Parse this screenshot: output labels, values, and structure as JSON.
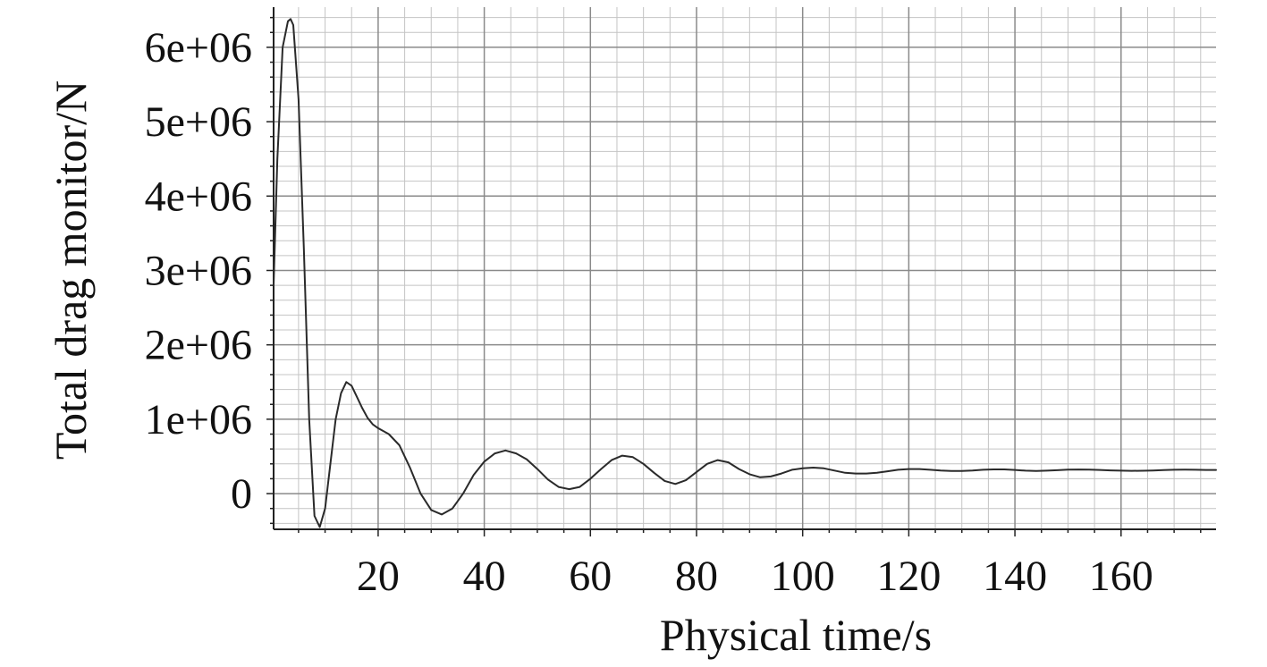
{
  "chart_data": {
    "type": "line",
    "title": "",
    "xlabel": "Physical time/s",
    "ylabel": "Total drag monitor/N",
    "xlim": [
      0.3,
      177.9
    ],
    "ylim": [
      -480000,
      6540000
    ],
    "grid": true,
    "x_ticks": [
      20,
      40,
      60,
      80,
      100,
      120,
      140,
      160
    ],
    "x_tick_labels": [
      "20",
      "40",
      "60",
      "80",
      "100",
      "120",
      "140",
      "160"
    ],
    "y_ticks": [
      0,
      1000000,
      2000000,
      3000000,
      4000000,
      5000000,
      6000000
    ],
    "y_tick_labels": [
      "0",
      "1e+06",
      "2e+06",
      "3e+06",
      "4e+06",
      "5e+06",
      "6e+06"
    ],
    "series": [
      {
        "color": "#2a2a2a",
        "x": [
          0.3,
          1,
          2,
          3,
          3.5,
          4,
          5,
          6,
          7,
          8,
          9,
          10,
          11,
          12,
          13,
          14,
          15,
          16,
          17,
          18,
          19,
          20,
          22,
          24,
          26,
          28,
          30,
          32,
          34,
          36,
          38,
          40,
          42,
          44,
          46,
          48,
          50,
          52,
          54,
          56,
          58,
          60,
          62,
          64,
          66,
          68,
          70,
          72,
          74,
          76,
          78,
          80,
          82,
          84,
          86,
          88,
          90,
          92,
          94,
          96,
          98,
          100,
          102,
          104,
          106,
          108,
          110,
          112,
          114,
          116,
          118,
          120,
          122,
          124,
          126,
          128,
          130,
          132,
          134,
          136,
          138,
          140,
          142,
          144,
          146,
          148,
          150,
          152,
          154,
          156,
          158,
          160,
          162,
          164,
          166,
          168,
          170,
          172,
          174,
          176,
          177.9
        ],
        "y": [
          2800000,
          4500000,
          6000000,
          6350000,
          6380000,
          6300000,
          5300000,
          3300000,
          1000000,
          -300000,
          -450000,
          -200000,
          400000,
          1000000,
          1350000,
          1500000,
          1450000,
          1300000,
          1150000,
          1020000,
          930000,
          880000,
          800000,
          650000,
          350000,
          0,
          -220000,
          -280000,
          -200000,
          0,
          250000,
          430000,
          540000,
          580000,
          540000,
          460000,
          330000,
          190000,
          90000,
          60000,
          90000,
          200000,
          330000,
          450000,
          510000,
          490000,
          400000,
          280000,
          170000,
          130000,
          180000,
          290000,
          400000,
          450000,
          420000,
          330000,
          260000,
          220000,
          230000,
          270000,
          320000,
          340000,
          350000,
          340000,
          310000,
          280000,
          270000,
          270000,
          280000,
          300000,
          320000,
          330000,
          330000,
          320000,
          310000,
          305000,
          305000,
          310000,
          320000,
          325000,
          325000,
          318000,
          308000,
          305000,
          308000,
          315000,
          322000,
          324000,
          323000,
          318000,
          312000,
          308000,
          306000,
          307000,
          311000,
          316000,
          320000,
          322000,
          320000,
          318000,
          318000
        ]
      }
    ]
  }
}
